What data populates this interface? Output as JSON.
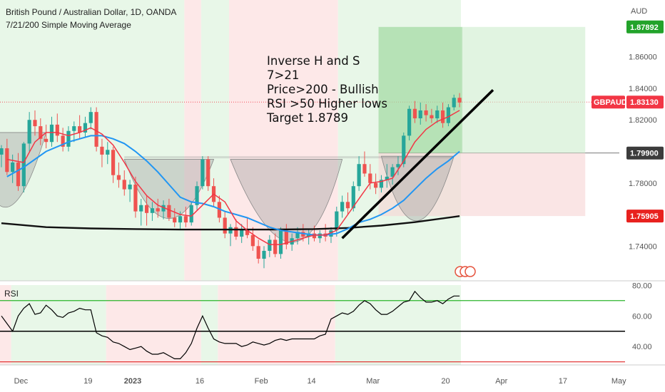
{
  "header": {
    "title": "British Pound / Australian Dollar, 1D, OANDA",
    "indicator": "7/21/200 Simple Moving Average",
    "currency": "AUD"
  },
  "annotation": [
    "Inverse H and S",
    "7>21",
    "Price>200 - Bullish",
    "RSI >50 Higher lows",
    "Target 1.8789"
  ],
  "rsi_label": "RSI",
  "colors": {
    "up": "#26a69a",
    "down": "#ef5350",
    "bg_bull": "#e8f7e8",
    "bg_bear": "#fde8e8",
    "sma7": "#f23645",
    "sma21": "#2196f3",
    "sma200": "#111111"
  },
  "price_tags": [
    {
      "label": "",
      "value": "1.87892",
      "color": "#22a32a"
    },
    {
      "label": "GBPAUD",
      "value": "1.83130",
      "color": "#f23645"
    },
    {
      "label": "",
      "value": "1.79900",
      "color": "#3c3c3c"
    },
    {
      "label": "",
      "value": "1.75905",
      "color": "#e8211e"
    }
  ],
  "chart_data": {
    "type": "candlestick",
    "ylim": [
      1.718,
      1.896
    ],
    "y_ticks": [
      "1.86000",
      "1.84000",
      "1.82000",
      "1.80000",
      "1.78000",
      "1.76000",
      "1.74000"
    ],
    "y_tick_values": [
      1.86,
      1.84,
      1.82,
      1.8,
      1.78,
      1.76,
      1.74
    ],
    "x_ticks": [
      "Dec",
      "19",
      "2023",
      "16",
      "Feb",
      "14",
      "Mar",
      "20",
      "Apr",
      "17",
      "May"
    ],
    "x_tick_index": [
      3.5,
      15.5,
      23.5,
      35.5,
      46.5,
      55.5,
      66.5,
      79.5,
      89.5,
      100.5,
      110.5
    ],
    "candles": [
      [
        1.798,
        1.804,
        1.79,
        1.802
      ],
      [
        1.802,
        1.808,
        1.785,
        1.787
      ],
      [
        1.787,
        1.798,
        1.78,
        1.793
      ],
      [
        1.793,
        1.799,
        1.775,
        1.778
      ],
      [
        1.778,
        1.806,
        1.774,
        1.805
      ],
      [
        1.805,
        1.825,
        1.8,
        1.82
      ],
      [
        1.82,
        1.826,
        1.81,
        1.816
      ],
      [
        1.816,
        1.821,
        1.804,
        1.808
      ],
      [
        1.808,
        1.817,
        1.802,
        1.806
      ],
      [
        1.806,
        1.822,
        1.803,
        1.817
      ],
      [
        1.817,
        1.824,
        1.806,
        1.81
      ],
      [
        1.81,
        1.815,
        1.8,
        1.803
      ],
      [
        1.803,
        1.816,
        1.8,
        1.813
      ],
      [
        1.813,
        1.819,
        1.806,
        1.816
      ],
      [
        1.816,
        1.823,
        1.808,
        1.812
      ],
      [
        1.812,
        1.822,
        1.809,
        1.818
      ],
      [
        1.818,
        1.828,
        1.814,
        1.825
      ],
      [
        1.825,
        1.828,
        1.8,
        1.803
      ],
      [
        1.803,
        1.808,
        1.79,
        1.798
      ],
      [
        1.798,
        1.806,
        1.792,
        1.801
      ],
      [
        1.801,
        1.803,
        1.78,
        1.785
      ],
      [
        1.785,
        1.793,
        1.777,
        1.782
      ],
      [
        1.782,
        1.788,
        1.772,
        1.776
      ],
      [
        1.776,
        1.782,
        1.768,
        1.779
      ],
      [
        1.779,
        1.784,
        1.758,
        1.762
      ],
      [
        1.762,
        1.77,
        1.753,
        1.766
      ],
      [
        1.766,
        1.772,
        1.753,
        1.761
      ],
      [
        1.761,
        1.768,
        1.756,
        1.764
      ],
      [
        1.764,
        1.77,
        1.758,
        1.762
      ],
      [
        1.762,
        1.769,
        1.757,
        1.766
      ],
      [
        1.766,
        1.77,
        1.756,
        1.758
      ],
      [
        1.758,
        1.764,
        1.752,
        1.755
      ],
      [
        1.755,
        1.762,
        1.751,
        1.759
      ],
      [
        1.759,
        1.765,
        1.752,
        1.755
      ],
      [
        1.755,
        1.768,
        1.753,
        1.766
      ],
      [
        1.766,
        1.781,
        1.763,
        1.778
      ],
      [
        1.778,
        1.797,
        1.776,
        1.795
      ],
      [
        1.795,
        1.797,
        1.775,
        1.778
      ],
      [
        1.778,
        1.783,
        1.765,
        1.768
      ],
      [
        1.768,
        1.772,
        1.755,
        1.758
      ],
      [
        1.758,
        1.762,
        1.745,
        1.748
      ],
      [
        1.748,
        1.754,
        1.74,
        1.752
      ],
      [
        1.752,
        1.757,
        1.744,
        1.746
      ],
      [
        1.746,
        1.754,
        1.742,
        1.751
      ],
      [
        1.751,
        1.758,
        1.745,
        1.747
      ],
      [
        1.747,
        1.752,
        1.737,
        1.74
      ],
      [
        1.74,
        1.744,
        1.729,
        1.732
      ],
      [
        1.732,
        1.74,
        1.726,
        1.737
      ],
      [
        1.737,
        1.747,
        1.733,
        1.744
      ],
      [
        1.744,
        1.748,
        1.733,
        1.735
      ],
      [
        1.735,
        1.752,
        1.732,
        1.75
      ],
      [
        1.75,
        1.754,
        1.738,
        1.741
      ],
      [
        1.741,
        1.748,
        1.737,
        1.745
      ],
      [
        1.745,
        1.752,
        1.741,
        1.749
      ],
      [
        1.749,
        1.754,
        1.743,
        1.746
      ],
      [
        1.746,
        1.751,
        1.741,
        1.748
      ],
      [
        1.748,
        1.753,
        1.743,
        1.745
      ],
      [
        1.745,
        1.75,
        1.742,
        1.748
      ],
      [
        1.748,
        1.754,
        1.743,
        1.746
      ],
      [
        1.746,
        1.752,
        1.742,
        1.75
      ],
      [
        1.75,
        1.765,
        1.746,
        1.762
      ],
      [
        1.762,
        1.772,
        1.758,
        1.768
      ],
      [
        1.768,
        1.774,
        1.76,
        1.764
      ],
      [
        1.764,
        1.781,
        1.762,
        1.778
      ],
      [
        1.778,
        1.797,
        1.775,
        1.792
      ],
      [
        1.792,
        1.8,
        1.784,
        1.786
      ],
      [
        1.786,
        1.792,
        1.776,
        1.78
      ],
      [
        1.78,
        1.786,
        1.773,
        1.777
      ],
      [
        1.777,
        1.785,
        1.774,
        1.782
      ],
      [
        1.782,
        1.792,
        1.777,
        1.784
      ],
      [
        1.784,
        1.792,
        1.779,
        1.79
      ],
      [
        1.79,
        1.797,
        1.785,
        1.792
      ],
      [
        1.792,
        1.812,
        1.79,
        1.81
      ],
      [
        1.81,
        1.829,
        1.807,
        1.827
      ],
      [
        1.827,
        1.832,
        1.818,
        1.821
      ],
      [
        1.821,
        1.831,
        1.817,
        1.826
      ],
      [
        1.826,
        1.83,
        1.819,
        1.823
      ],
      [
        1.823,
        1.827,
        1.818,
        1.821
      ],
      [
        1.821,
        1.829,
        1.818,
        1.826
      ],
      [
        1.826,
        1.831,
        1.815,
        1.818
      ],
      [
        1.818,
        1.83,
        1.816,
        1.828
      ],
      [
        1.828,
        1.836,
        1.826,
        1.834
      ],
      [
        1.834,
        1.837,
        1.828,
        1.831
      ]
    ],
    "sma7": [
      [
        1,
        1.795
      ],
      [
        4,
        1.793
      ],
      [
        6,
        1.806
      ],
      [
        8,
        1.812
      ],
      [
        10,
        1.812
      ],
      [
        12,
        1.81
      ],
      [
        14,
        1.812
      ],
      [
        16,
        1.815
      ],
      [
        18,
        1.811
      ],
      [
        20,
        1.804
      ],
      [
        22,
        1.793
      ],
      [
        24,
        1.781
      ],
      [
        26,
        1.772
      ],
      [
        28,
        1.766
      ],
      [
        30,
        1.763
      ],
      [
        32,
        1.76
      ],
      [
        34,
        1.759
      ],
      [
        36,
        1.766
      ],
      [
        38,
        1.773
      ],
      [
        40,
        1.768
      ],
      [
        42,
        1.756
      ],
      [
        44,
        1.75
      ],
      [
        46,
        1.745
      ],
      [
        48,
        1.741
      ],
      [
        50,
        1.741
      ],
      [
        52,
        1.743
      ],
      [
        54,
        1.745
      ],
      [
        56,
        1.747
      ],
      [
        58,
        1.747
      ],
      [
        60,
        1.75
      ],
      [
        62,
        1.76
      ],
      [
        64,
        1.77
      ],
      [
        66,
        1.78
      ],
      [
        68,
        1.781
      ],
      [
        70,
        1.783
      ],
      [
        72,
        1.794
      ],
      [
        74,
        1.806
      ],
      [
        76,
        1.814
      ],
      [
        78,
        1.819
      ],
      [
        80,
        1.822
      ],
      [
        82,
        1.826
      ]
    ],
    "sma21": [
      [
        1,
        1.784
      ],
      [
        4,
        1.79
      ],
      [
        8,
        1.8
      ],
      [
        12,
        1.806
      ],
      [
        16,
        1.81
      ],
      [
        18,
        1.81
      ],
      [
        20,
        1.808
      ],
      [
        22,
        1.805
      ],
      [
        24,
        1.8
      ],
      [
        26,
        1.794
      ],
      [
        28,
        1.787
      ],
      [
        30,
        1.779
      ],
      [
        32,
        1.771
      ],
      [
        34,
        1.768
      ],
      [
        36,
        1.767
      ],
      [
        38,
        1.765
      ],
      [
        40,
        1.762
      ],
      [
        42,
        1.76
      ],
      [
        44,
        1.758
      ],
      [
        46,
        1.755
      ],
      [
        48,
        1.752
      ],
      [
        50,
        1.75
      ],
      [
        52,
        1.749
      ],
      [
        54,
        1.748
      ],
      [
        56,
        1.747
      ],
      [
        58,
        1.747
      ],
      [
        60,
        1.748
      ],
      [
        62,
        1.751
      ],
      [
        64,
        1.755
      ],
      [
        66,
        1.757
      ],
      [
        68,
        1.76
      ],
      [
        70,
        1.764
      ],
      [
        72,
        1.769
      ],
      [
        74,
        1.776
      ],
      [
        76,
        1.783
      ],
      [
        78,
        1.789
      ],
      [
        80,
        1.794
      ],
      [
        82,
        1.8
      ]
    ],
    "sma200": [
      [
        0,
        1.7545
      ],
      [
        8,
        1.752
      ],
      [
        16,
        1.7512
      ],
      [
        24,
        1.7508
      ],
      [
        32,
        1.7505
      ],
      [
        40,
        1.7505
      ],
      [
        48,
        1.7505
      ],
      [
        56,
        1.7508
      ],
      [
        62,
        1.7515
      ],
      [
        68,
        1.753
      ],
      [
        74,
        1.7552
      ],
      [
        82,
        1.759
      ]
    ],
    "trendline": [
      [
        61,
        1.745
      ],
      [
        88,
        1.839
      ]
    ],
    "rsi": {
      "ylim": [
        28,
        82
      ],
      "ticks": [
        "80.00",
        "60.00",
        "40.00"
      ],
      "tick_values": [
        80,
        60,
        40
      ],
      "levels": [
        70,
        50,
        30
      ],
      "values": [
        60,
        55,
        50,
        60,
        65,
        68,
        61,
        62,
        67,
        64,
        60,
        59,
        62,
        63,
        65,
        64,
        64,
        49,
        47,
        46,
        43,
        42,
        40,
        38,
        39,
        40,
        37,
        35,
        35,
        36,
        34,
        32,
        32,
        36,
        42,
        52,
        60,
        52,
        45,
        43,
        42,
        42,
        42,
        40,
        41,
        43,
        42,
        41,
        42,
        44,
        45,
        44,
        45,
        45,
        45,
        45,
        45,
        47,
        48,
        58,
        60,
        62,
        61,
        63,
        67,
        70,
        68,
        64,
        61,
        61,
        63,
        66,
        69,
        70,
        76,
        72,
        69,
        69,
        70,
        68,
        71,
        73,
        73
      ]
    }
  }
}
